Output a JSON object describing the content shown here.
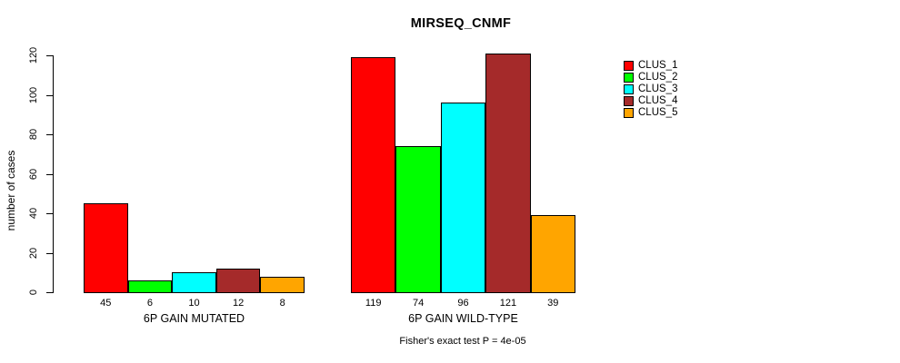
{
  "chart_data": {
    "type": "bar",
    "title": "MIRSEQ_CNMF",
    "ylabel": "number of cases",
    "xlabel": "",
    "ylim": [
      0,
      120
    ],
    "y_ticks": [
      0,
      20,
      40,
      60,
      80,
      100,
      120
    ],
    "grid": false,
    "legend_position": "right",
    "categories": [
      "6P GAIN MUTATED",
      "6P GAIN WILD-TYPE"
    ],
    "series": [
      {
        "name": "CLUS_1",
        "color": "#ff0000",
        "values": [
          45,
          119
        ]
      },
      {
        "name": "CLUS_2",
        "color": "#00ff00",
        "values": [
          6,
          74
        ]
      },
      {
        "name": "CLUS_3",
        "color": "#00ffff",
        "values": [
          10,
          96
        ]
      },
      {
        "name": "CLUS_4",
        "color": "#a52a2a",
        "values": [
          12,
          121
        ]
      },
      {
        "name": "CLUS_5",
        "color": "#ffa500",
        "values": [
          8,
          39
        ]
      }
    ],
    "bar_value_labels": [
      [
        45,
        6,
        10,
        12,
        8
      ],
      [
        119,
        74,
        96,
        121,
        39
      ]
    ],
    "annotation": "Fisher's exact test P = 4e-05"
  }
}
